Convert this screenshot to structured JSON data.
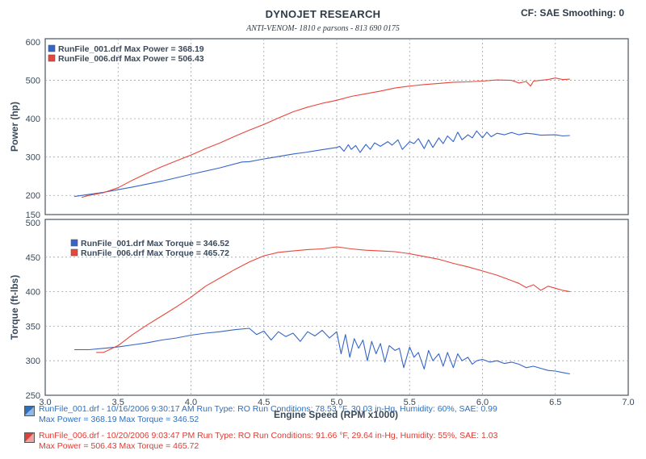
{
  "header": {
    "title": "DYNOJET RESEARCH",
    "subtitle": "ANTI-VENOM- 1810 e parsons - 813 690 0175",
    "cf_label": "CF: SAE  Smoothing: 0"
  },
  "colors": {
    "run1": "#3565c8",
    "run2": "#e8463a",
    "grid": "#9aa3ab",
    "axis": "#4a5560"
  },
  "footer": {
    "run1_line1": "RunFile_001.drf - 10/16/2006 9:30:17 AM  Run Type: RO  Run Conditions: 78.53 °F, 30.03 in-Hg,  Humidity:  60%, SAE: 0.99",
    "run1_line2": "Max Power = 368.19  Max Torque = 346.52",
    "run2_line1": "RunFile_006.drf - 10/20/2006 9:03:47 PM  Run Type: RO  Run Conditions: 91.66 °F, 29.64 in-Hg,  Humidity:  55%, SAE: 1.03",
    "run2_line2": "Max Power = 506.43  Max Torque = 465.72"
  },
  "chart_data": [
    {
      "type": "line",
      "ylabel": "Power (hp)",
      "xlabel": "",
      "xlim": [
        3.0,
        7.0
      ],
      "ylim": [
        150,
        600
      ],
      "yticks": [
        150,
        200,
        300,
        400,
        500,
        600
      ],
      "grid": true,
      "legend_position": "top-left",
      "legend": [
        "RunFile_001.drf Max Power = 368.19",
        "RunFile_006.drf Max Power = 506.43"
      ],
      "series": [
        {
          "name": "RunFile_001.drf",
          "color": "#3565c8",
          "x": [
            3.2,
            3.4,
            3.6,
            3.8,
            4.0,
            4.2,
            4.35,
            4.4,
            4.5,
            4.55,
            4.7,
            4.8,
            4.9,
            5.0,
            5.02,
            5.05,
            5.08,
            5.1,
            5.13,
            5.16,
            5.2,
            5.23,
            5.26,
            5.3,
            5.35,
            5.38,
            5.42,
            5.45,
            5.5,
            5.53,
            5.56,
            5.6,
            5.63,
            5.66,
            5.7,
            5.73,
            5.76,
            5.8,
            5.83,
            5.86,
            5.9,
            5.93,
            5.96,
            6.0,
            6.03,
            6.06,
            6.1,
            6.15,
            6.2,
            6.25,
            6.3,
            6.35,
            6.4,
            6.5,
            6.55,
            6.6
          ],
          "y": [
            197,
            208,
            222,
            237,
            255,
            272,
            287,
            288,
            295,
            298,
            308,
            313,
            319,
            325,
            328,
            315,
            332,
            320,
            330,
            312,
            333,
            320,
            337,
            328,
            340,
            331,
            345,
            320,
            340,
            335,
            348,
            322,
            345,
            325,
            350,
            335,
            355,
            340,
            365,
            345,
            358,
            350,
            368,
            350,
            365,
            353,
            362,
            358,
            364,
            358,
            362,
            360,
            357,
            358,
            355,
            356
          ]
        },
        {
          "name": "RunFile_006.drf",
          "color": "#e8463a",
          "x": [
            3.25,
            3.3,
            3.4,
            3.5,
            3.6,
            3.7,
            3.8,
            3.9,
            4.0,
            4.1,
            4.2,
            4.3,
            4.4,
            4.5,
            4.6,
            4.7,
            4.8,
            4.9,
            5.0,
            5.1,
            5.2,
            5.3,
            5.4,
            5.5,
            5.6,
            5.7,
            5.8,
            5.9,
            6.0,
            6.1,
            6.2,
            6.25,
            6.3,
            6.33,
            6.35,
            6.4,
            6.45,
            6.5,
            6.55,
            6.6
          ],
          "y": [
            195,
            200,
            207,
            220,
            240,
            258,
            275,
            290,
            305,
            322,
            337,
            354,
            370,
            385,
            402,
            418,
            430,
            440,
            448,
            458,
            465,
            472,
            480,
            485,
            489,
            492,
            495,
            496,
            498,
            501,
            500,
            493,
            497,
            485,
            498,
            500,
            502,
            506,
            502,
            503
          ]
        }
      ]
    },
    {
      "type": "line",
      "ylabel": "Torque (ft-lbs)",
      "xlabel": "Engine Speed (RPM x1000)",
      "xlim": [
        3.0,
        7.0
      ],
      "ylim": [
        250,
        500
      ],
      "xticks": [
        3.0,
        3.5,
        4.0,
        4.5,
        5.0,
        5.5,
        6.0,
        6.5,
        7.0
      ],
      "yticks": [
        250,
        300,
        350,
        400,
        450,
        500
      ],
      "grid": true,
      "legend_position": "top-left",
      "legend": [
        "RunFile_001.drf Max Torque = 346.52",
        "RunFile_006.drf Max Torque = 465.72"
      ],
      "series": [
        {
          "name": "RunFile_001.drf",
          "color": "#3565c8",
          "x": [
            3.2,
            3.3,
            3.4,
            3.5,
            3.6,
            3.7,
            3.8,
            3.9,
            4.0,
            4.1,
            4.2,
            4.3,
            4.4,
            4.45,
            4.5,
            4.55,
            4.6,
            4.65,
            4.7,
            4.75,
            4.8,
            4.85,
            4.9,
            4.95,
            5.0,
            5.03,
            5.06,
            5.09,
            5.12,
            5.15,
            5.18,
            5.21,
            5.24,
            5.27,
            5.3,
            5.33,
            5.36,
            5.4,
            5.43,
            5.46,
            5.5,
            5.53,
            5.56,
            5.6,
            5.63,
            5.66,
            5.7,
            5.73,
            5.76,
            5.8,
            5.83,
            5.86,
            5.9,
            5.93,
            5.96,
            6.0,
            6.05,
            6.1,
            6.15,
            6.2,
            6.25,
            6.3,
            6.35,
            6.4,
            6.45,
            6.5,
            6.55,
            6.6
          ],
          "y": [
            316,
            316,
            318,
            320,
            323,
            326,
            330,
            333,
            337,
            340,
            342,
            345,
            347,
            338,
            343,
            330,
            342,
            335,
            340,
            328,
            342,
            336,
            344,
            333,
            342,
            310,
            338,
            305,
            332,
            318,
            330,
            300,
            328,
            310,
            325,
            298,
            322,
            315,
            318,
            290,
            320,
            305,
            312,
            288,
            315,
            300,
            310,
            292,
            312,
            290,
            310,
            300,
            305,
            295,
            300,
            302,
            298,
            300,
            296,
            298,
            295,
            290,
            292,
            289,
            286,
            285,
            283,
            281
          ]
        },
        {
          "name": "RunFile_006.drf",
          "color": "#e8463a",
          "x": [
            3.35,
            3.4,
            3.5,
            3.6,
            3.7,
            3.8,
            3.9,
            4.0,
            4.1,
            4.2,
            4.3,
            4.4,
            4.5,
            4.6,
            4.7,
            4.8,
            4.9,
            5.0,
            5.1,
            5.2,
            5.3,
            5.4,
            5.5,
            5.6,
            5.7,
            5.8,
            5.9,
            6.0,
            6.1,
            6.2,
            6.25,
            6.3,
            6.35,
            6.4,
            6.45,
            6.5,
            6.55,
            6.6
          ],
          "y": [
            312,
            312,
            322,
            338,
            352,
            365,
            378,
            392,
            408,
            420,
            432,
            443,
            452,
            457,
            459,
            461,
            462,
            465,
            462,
            460,
            459,
            458,
            455,
            451,
            447,
            441,
            436,
            430,
            424,
            416,
            412,
            406,
            410,
            402,
            408,
            405,
            402,
            400
          ]
        }
      ]
    }
  ]
}
